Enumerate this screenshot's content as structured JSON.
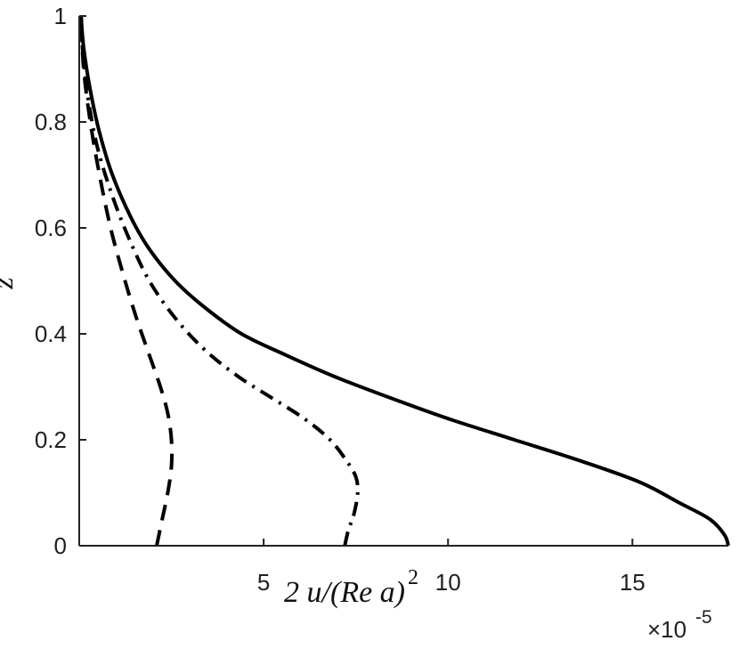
{
  "chart_data": {
    "type": "line",
    "xlabel": "2 u/(Re a)",
    "xlabel_exponent": "2",
    "ylabel": "z",
    "x_multiplier_label": "×10",
    "x_multiplier_exponent": "-5",
    "xlim": [
      0,
      17.6
    ],
    "ylim": [
      0,
      1
    ],
    "x_ticks": [
      5,
      10,
      15
    ],
    "x_tick_labels": [
      "5",
      "10",
      "15"
    ],
    "y_ticks": [
      0,
      0.2,
      0.4,
      0.6,
      0.8,
      1
    ],
    "y_tick_labels": [
      "0",
      "0.2",
      "0.4",
      "0.6",
      "0.8",
      "1"
    ],
    "grid": false,
    "series": [
      {
        "style": "solid",
        "color": "#000000",
        "x": [
          17.6,
          17.5,
          17.1,
          16.3,
          15.2,
          13.6,
          11.8,
          10.0,
          8.4,
          6.9,
          5.6,
          4.4,
          3.4,
          2.6,
          1.9,
          1.4,
          0.9,
          0.55,
          0.3,
          0.12,
          0.05
        ],
        "y": [
          0.0,
          0.02,
          0.05,
          0.08,
          0.12,
          0.16,
          0.2,
          0.24,
          0.28,
          0.32,
          0.36,
          0.4,
          0.45,
          0.5,
          0.56,
          0.62,
          0.7,
          0.78,
          0.86,
          0.94,
          1.0
        ]
      },
      {
        "style": "dashdot",
        "color": "#000000",
        "x": [
          7.2,
          7.3,
          7.45,
          7.55,
          7.5,
          7.25,
          6.8,
          6.1,
          5.2,
          4.3,
          3.4,
          2.6,
          1.9,
          1.35,
          0.9,
          0.5,
          0.25,
          0.1,
          0.05
        ],
        "y": [
          0.0,
          0.03,
          0.06,
          0.1,
          0.13,
          0.16,
          0.2,
          0.24,
          0.28,
          0.32,
          0.37,
          0.43,
          0.5,
          0.58,
          0.66,
          0.75,
          0.84,
          0.93,
          1.0
        ]
      },
      {
        "style": "dashed",
        "color": "#000000",
        "x": [
          2.1,
          2.25,
          2.4,
          2.5,
          2.5,
          2.4,
          2.2,
          1.9,
          1.55,
          1.2,
          0.85,
          0.55,
          0.3,
          0.12,
          0.05
        ],
        "y": [
          0.0,
          0.05,
          0.1,
          0.15,
          0.2,
          0.25,
          0.3,
          0.36,
          0.43,
          0.51,
          0.6,
          0.7,
          0.8,
          0.9,
          1.0
        ]
      }
    ]
  }
}
